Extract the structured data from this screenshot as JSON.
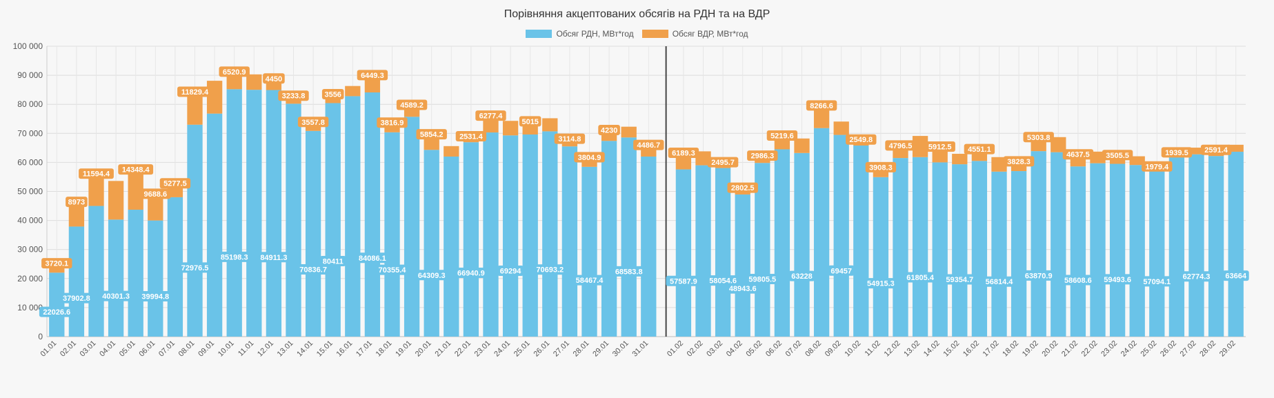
{
  "chart_data": {
    "type": "bar",
    "stacked": true,
    "title": "Порівняння акцептованих обсягів на РДН та на ВДР",
    "xlabel": "",
    "ylabel": "",
    "ylim": [
      0,
      100000
    ],
    "grid": true,
    "legend_position": "top-center",
    "y_ticks": [
      "0",
      "10 000",
      "20 000",
      "30 000",
      "40 000",
      "50 000",
      "60 000",
      "70 000",
      "80 000",
      "90 000",
      "100 000"
    ],
    "categories": [
      "01.01",
      "02.01",
      "03.01",
      "04.01",
      "05.01",
      "06.01",
      "07.01",
      "08.01",
      "09.01",
      "10.01",
      "11.01",
      "12.01",
      "13.01",
      "14.01",
      "15.01",
      "16.01",
      "17.01",
      "18.01",
      "19.01",
      "20.01",
      "21.01",
      "22.01",
      "23.01",
      "24.01",
      "25.01",
      "26.01",
      "27.01",
      "28.01",
      "29.01",
      "30.01",
      "31.01",
      "01.02",
      "02.02",
      "03.02",
      "04.02",
      "05.02",
      "06.02",
      "07.02",
      "08.02",
      "09.02",
      "10.02",
      "11.02",
      "12.02",
      "13.02",
      "14.02",
      "15.02",
      "16.02",
      "17.02",
      "18.02",
      "19.02",
      "20.02",
      "21.02",
      "22.02",
      "23.02",
      "24.02",
      "25.02",
      "26.02",
      "27.02",
      "28.02",
      "29.02"
    ],
    "series": [
      {
        "name": "Обсяг РДН, МВт*год",
        "color": "#6ac3e8",
        "values": [
          22026.6,
          37902.8,
          45000,
          40301.3,
          43700,
          39994.8,
          48000,
          72976.5,
          76800,
          85198.3,
          85000,
          84911.3,
          80200,
          70836.7,
          80411,
          82800,
          84086.1,
          70355.4,
          75700,
          64309.3,
          62000,
          66940.9,
          70300,
          69294,
          69600,
          70693.2,
          65500,
          58467.4,
          67400,
          68583.8,
          62000,
          57587.9,
          59000,
          58054.6,
          48943.6,
          59805.5,
          64500,
          63228,
          71800,
          69457,
          65800,
          54915.3,
          61500,
          61805.4,
          60000,
          59354.7,
          60500,
          56814.4,
          57000,
          63870.9,
          63500,
          58608.6,
          59700,
          59493.6,
          59100,
          57094.1,
          62000,
          62774.3,
          62200,
          63664
        ],
        "labels": [
          "22026.6",
          "37902.8",
          "",
          "40301.3",
          "",
          "39994.8",
          "",
          "72976.5",
          "",
          "85198.3",
          "",
          "84911.3",
          "",
          "70836.7",
          "80411",
          "",
          "84086.1",
          "70355.4",
          "",
          "64309.3",
          "",
          "66940.9",
          "",
          "69294",
          "",
          "70693.2",
          "",
          "58467.4",
          "",
          "68583.8",
          "",
          "57587.9",
          "",
          "58054.6",
          "48943.6",
          "59805.5",
          "",
          "63228",
          "",
          "69457",
          "",
          "54915.3",
          "",
          "61805.4",
          "",
          "59354.7",
          "",
          "56814.4",
          "",
          "63870.9",
          "",
          "58608.6",
          "",
          "59493.6",
          "",
          "57094.1",
          "",
          "62774.3",
          "",
          "63664"
        ]
      },
      {
        "name": "Обсяг ВДР, МВт*год",
        "color": "#f0a04b",
        "values": [
          3720.1,
          8973,
          11594.4,
          13300,
          14348.4,
          9688.6,
          5277.5,
          11829.4,
          11300,
          6520.9,
          5300,
          4450,
          3233.8,
          3557.8,
          3556,
          3500,
          6449.3,
          3816.9,
          4589.2,
          5854.2,
          3600,
          2531.4,
          6277.4,
          5000,
          5015,
          4500,
          3114.8,
          3804.9,
          4230,
          3700,
          4486.7,
          6189.3,
          4800,
          2495.7,
          2802.5,
          2986.3,
          5219.6,
          5000,
          8266.6,
          4600,
          2549.8,
          3908.3,
          4796.5,
          7300,
          5912.5,
          3600,
          4551.1,
          5000,
          3828.3,
          5303.8,
          5200,
          4637.5,
          4000,
          3505.5,
          3000,
          1979.4,
          1939.5,
          2300,
          2591.4,
          2400
        ],
        "labels": [
          "3720.1",
          "8973",
          "11594.4",
          "",
          "14348.4",
          "9688.6",
          "5277.5",
          "11829.4",
          "",
          "6520.9",
          "",
          "4450",
          "3233.8",
          "3557.8",
          "3556",
          "",
          "6449.3",
          "3816.9",
          "4589.2",
          "5854.2",
          "",
          "2531.4",
          "6277.4",
          "",
          "5015",
          "",
          "3114.8",
          "3804.9",
          "4230",
          "",
          "4486.7",
          "6189.3",
          "",
          "2495.7",
          "2802.5",
          "2986.3",
          "5219.6",
          "",
          "8266.6",
          "",
          "2549.8",
          "3908.3",
          "4796.5",
          "",
          "5912.5",
          "",
          "4551.1",
          "",
          "3828.3",
          "5303.8",
          "",
          "4637.5",
          "",
          "3505.5",
          "",
          "1979.4",
          "1939.5",
          "",
          "2591.4",
          ""
        ]
      }
    ]
  }
}
